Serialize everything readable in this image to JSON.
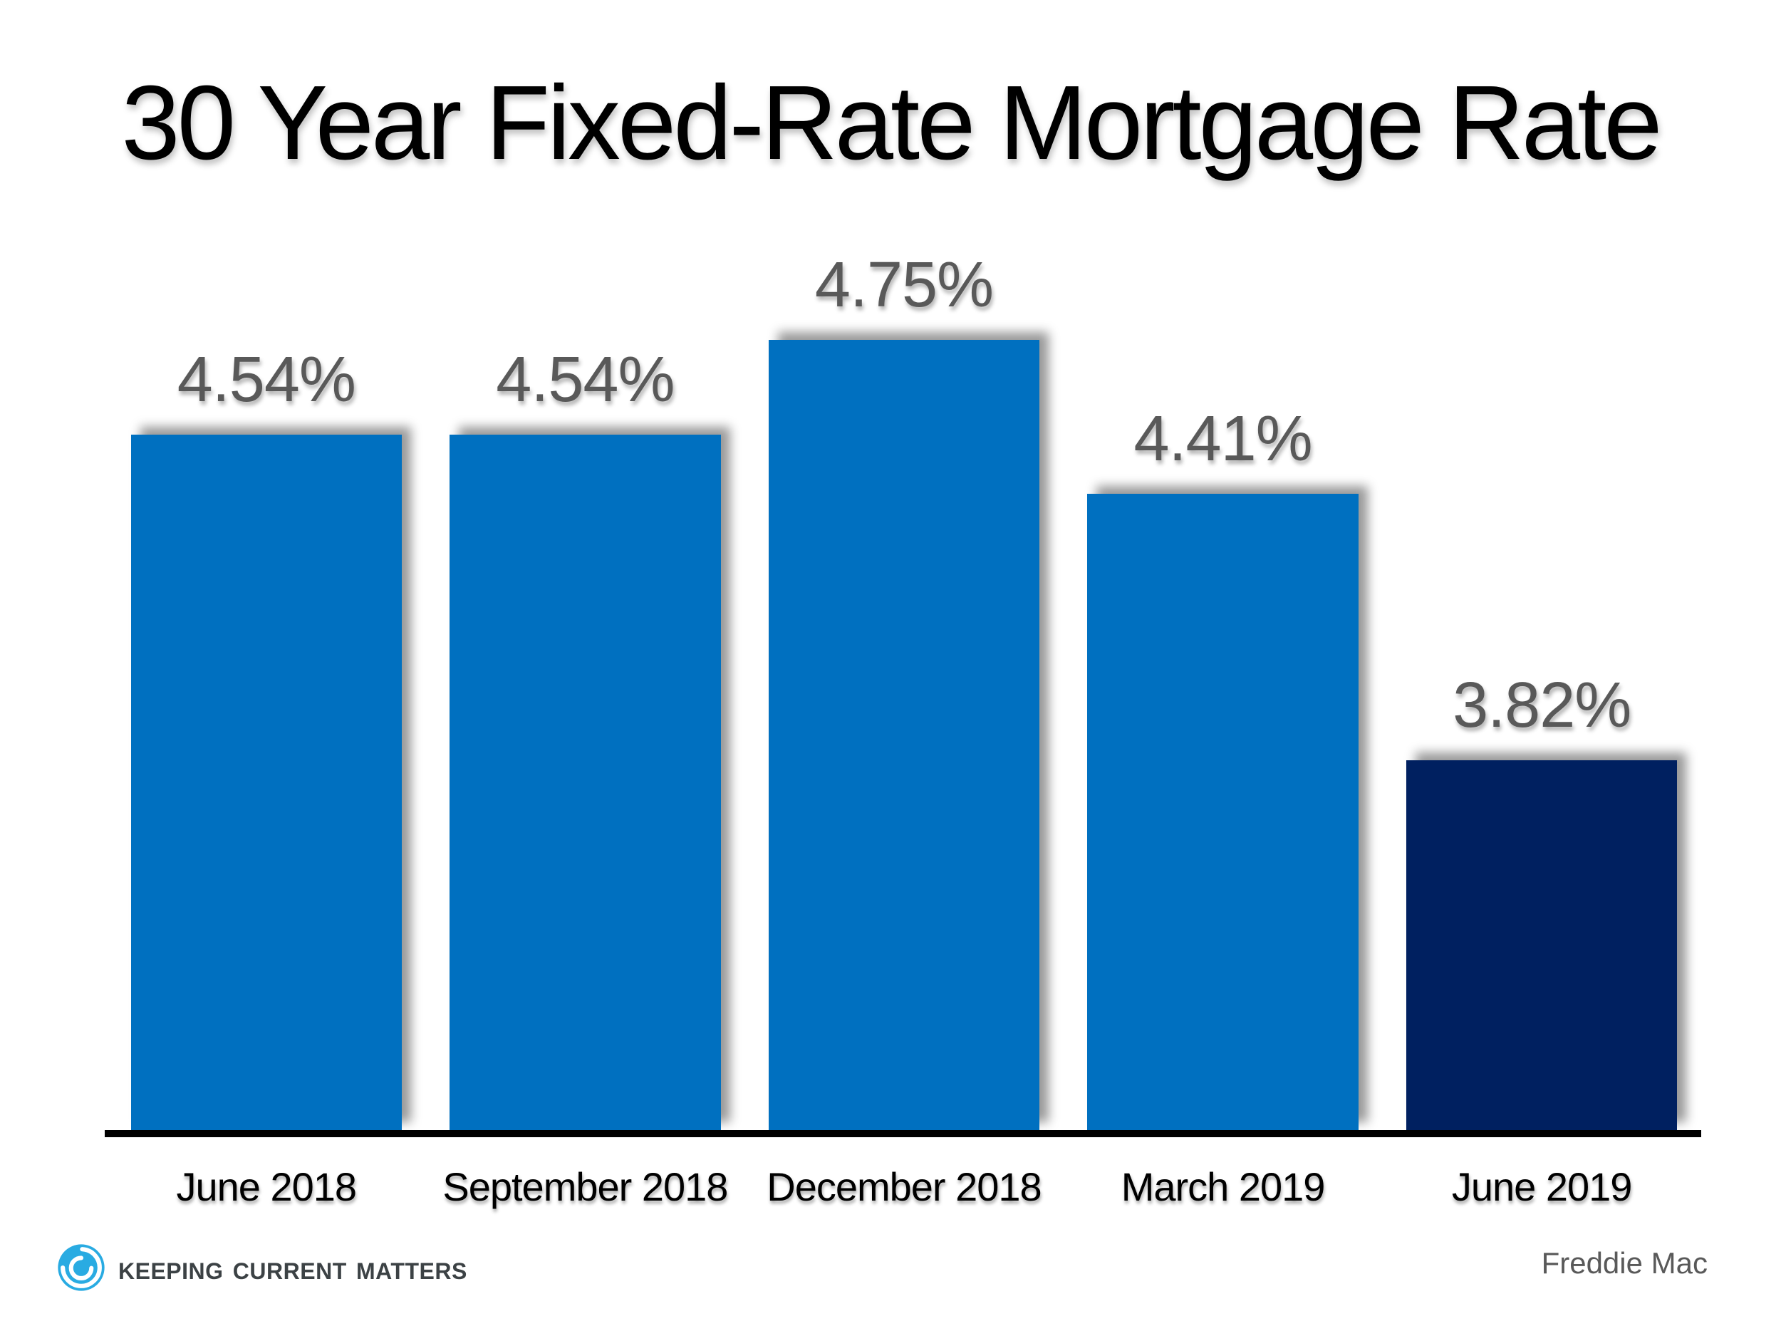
{
  "title": "30 Year Fixed-Rate Mortgage Rate",
  "chart_data": {
    "type": "bar",
    "title": "30 Year Fixed-Rate Mortgage Rate",
    "categories": [
      "June 2018",
      "September 2018",
      "December 2018",
      "March 2019",
      "June 2019"
    ],
    "values": [
      4.54,
      4.54,
      4.75,
      4.41,
      3.82
    ],
    "data_labels": [
      "4.54%",
      "4.54%",
      "4.75%",
      "4.41%",
      "3.82%"
    ],
    "xlabel": "",
    "ylabel": "",
    "ylim": [
      3.0,
      5.0
    ],
    "grid": false,
    "legend": false,
    "bar_colors": [
      "#0070C0",
      "#0070C0",
      "#0070C0",
      "#0070C0",
      "#002060"
    ],
    "data_label_color": "#595959",
    "axis_color": "#000000"
  },
  "footer": {
    "logo_icon": "swirl-icon",
    "logo_text": "Keeping Current Matters",
    "source": "Freddie Mac"
  },
  "colors": {
    "background": "#FFFFFF",
    "bar_blue": "#0070C0",
    "bar_navy": "#002060",
    "label_gray": "#595959",
    "logo_blue": "#29ABE2",
    "logo_text_gray": "#3C4245"
  }
}
